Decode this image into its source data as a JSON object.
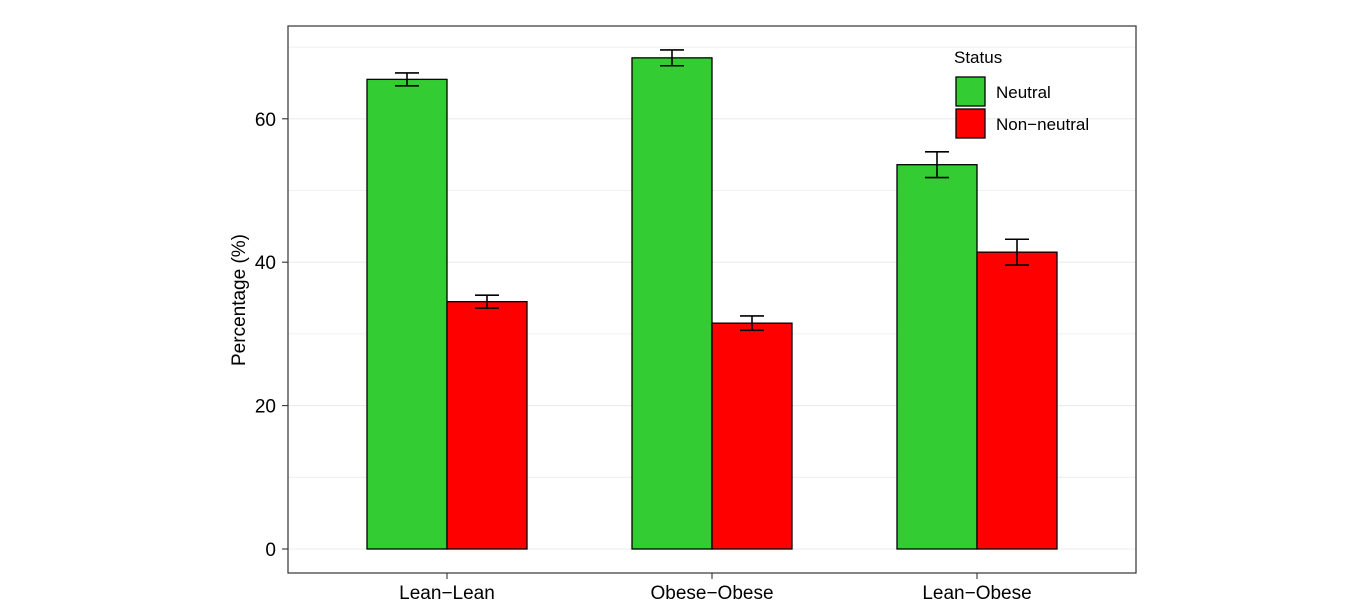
{
  "chart_data": {
    "type": "bar",
    "categories": [
      "Lean−Lean",
      "Obese−Obese",
      "Lean−Obese"
    ],
    "series": [
      {
        "name": "Neutral",
        "values": [
          65.5,
          68.5,
          53.6
        ],
        "errors": [
          0.9,
          1.1,
          1.8
        ],
        "color": "#33cc33"
      },
      {
        "name": "Non−neutral",
        "values": [
          34.5,
          31.5,
          41.4
        ],
        "errors": [
          0.9,
          1.0,
          1.8
        ],
        "color": "#ff0000"
      }
    ],
    "xlabel": "",
    "ylabel": "Percentage (%)",
    "ylim": [
      0,
      70
    ],
    "yticks": [
      0,
      20,
      40,
      60
    ],
    "ytick_labels": [
      "0",
      "20",
      "40",
      "60"
    ],
    "grid": true,
    "legend": {
      "title": "Status",
      "position": "top-right"
    }
  }
}
